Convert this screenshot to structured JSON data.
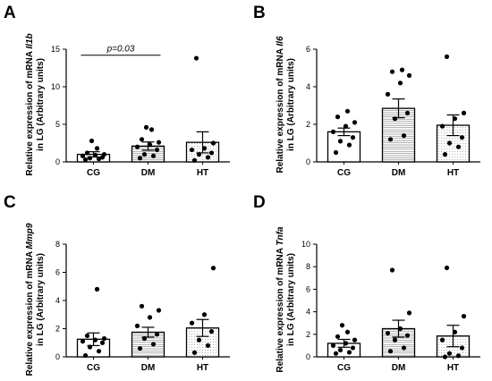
{
  "chart_data": [
    {
      "type": "bar",
      "panel_label": "A",
      "ylabel_prefix": "Relative expression of mRNA ",
      "gene": "Il1b",
      "ylabel_line2": "in LG (Arbitrary units)",
      "ylim": [
        0,
        15
      ],
      "yticks": [
        "0",
        "5",
        "10",
        "15"
      ],
      "categories": [
        "CG",
        "DM",
        "HT"
      ],
      "values": [
        1.0,
        2.1,
        2.6
      ],
      "errors": [
        0.35,
        0.55,
        1.4
      ],
      "points": [
        [
          0.3,
          0.4,
          0.5,
          0.6,
          0.8,
          0.9,
          1.0,
          1.2,
          1.8,
          2.8
        ],
        [
          0.5,
          0.8,
          1.0,
          1.6,
          2.0,
          2.3,
          2.6,
          3.0,
          4.3,
          4.6
        ],
        [
          0.2,
          0.6,
          1.0,
          1.2,
          1.6,
          1.8,
          2.5,
          13.8
        ]
      ],
      "fills": [
        "plain",
        "lines",
        "dots"
      ],
      "annotation": {
        "text": "p=0.03",
        "from": 0,
        "to": 1,
        "y": 14.2
      }
    },
    {
      "type": "bar",
      "panel_label": "B",
      "ylabel_prefix": "Relative expression of mRNA ",
      "gene": "Il6",
      "ylabel_line2": "in LG (Arbitrary units)",
      "ylim": [
        0,
        6
      ],
      "yticks": [
        "0",
        "2",
        "4",
        "6"
      ],
      "categories": [
        "CG",
        "DM",
        "HT"
      ],
      "values": [
        1.6,
        2.85,
        1.95
      ],
      "errors": [
        0.2,
        0.5,
        0.55
      ],
      "points": [
        [
          0.5,
          0.9,
          1.1,
          1.3,
          1.6,
          1.9,
          2.1,
          2.4,
          2.7
        ],
        [
          1.2,
          1.4,
          2.3,
          2.6,
          3.6,
          4.2,
          4.6,
          4.8,
          4.9
        ],
        [
          0.4,
          0.8,
          1.0,
          1.3,
          1.9,
          2.3,
          2.6,
          5.6
        ]
      ],
      "fills": [
        "plain",
        "lines",
        "dots"
      ]
    },
    {
      "type": "bar",
      "panel_label": "C",
      "ylabel_prefix": "Relative expression of mRNA ",
      "gene": "Mmp9",
      "ylabel_line2": "in LG (Arbitrary units)",
      "ylim": [
        0,
        8
      ],
      "yticks": [
        "0",
        "2",
        "4",
        "6",
        "8"
      ],
      "categories": [
        "CG",
        "DM",
        "HT"
      ],
      "values": [
        1.25,
        1.75,
        2.05
      ],
      "errors": [
        0.45,
        0.35,
        0.6
      ],
      "points": [
        [
          0.1,
          0.4,
          0.7,
          1.0,
          1.1,
          1.2,
          1.3,
          1.5,
          4.8
        ],
        [
          0.6,
          0.9,
          1.3,
          1.6,
          2.2,
          2.8,
          3.3,
          3.6
        ],
        [
          0.3,
          0.8,
          1.2,
          1.8,
          2.4,
          3.0,
          6.3
        ]
      ],
      "fills": [
        "plain",
        "lines",
        "dots"
      ]
    },
    {
      "type": "bar",
      "panel_label": "D",
      "ylabel_prefix": "Relative expression of mRNA ",
      "gene": "Tnfa",
      "ylabel_line2": "in LG (Arbitrary units)",
      "ylim": [
        0,
        10
      ],
      "yticks": [
        "0",
        "2",
        "4",
        "6",
        "8",
        "10"
      ],
      "categories": [
        "CG",
        "DM",
        "HT"
      ],
      "values": [
        1.2,
        2.5,
        1.85
      ],
      "errors": [
        0.35,
        0.75,
        0.95
      ],
      "points": [
        [
          0.3,
          0.4,
          0.6,
          0.8,
          1.0,
          1.2,
          1.5,
          1.8,
          2.2,
          2.8
        ],
        [
          0.5,
          0.8,
          1.5,
          1.9,
          2.1,
          2.5,
          3.9,
          7.7
        ],
        [
          0.0,
          0.1,
          0.3,
          0.8,
          1.5,
          2.2,
          3.6,
          7.9
        ]
      ],
      "fills": [
        "plain",
        "lines",
        "dots"
      ]
    }
  ]
}
